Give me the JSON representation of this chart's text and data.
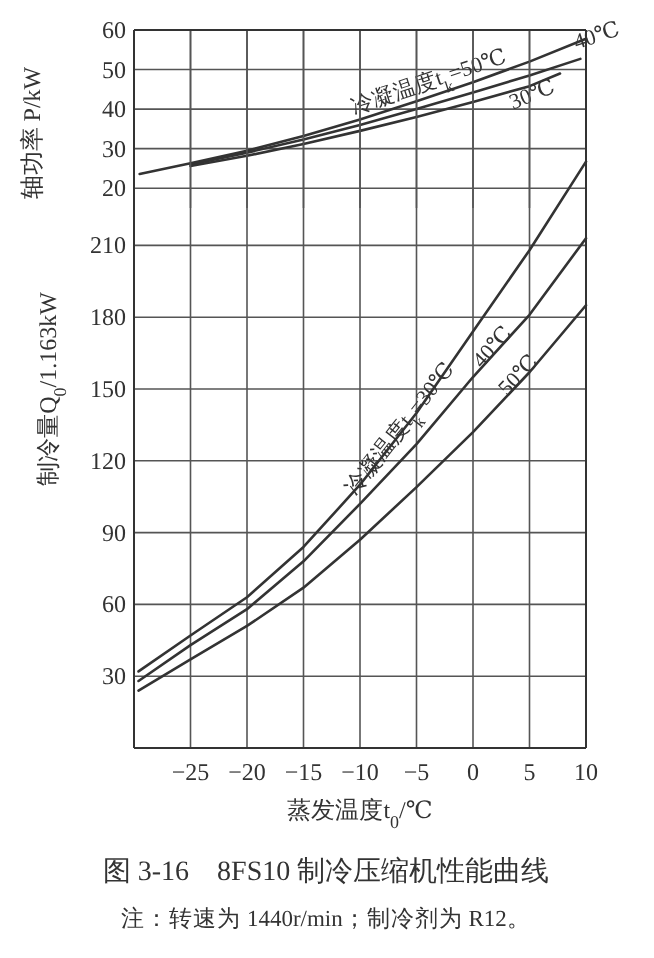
{
  "chart_data": [
    {
      "type": "line",
      "ylabel": "轴功率 P/kW",
      "xlim": [
        -30,
        10
      ],
      "xticks": [
        {
          "value": -25,
          "label": null
        },
        {
          "value": -20,
          "label": null
        },
        {
          "value": -15,
          "label": null
        },
        {
          "value": -10,
          "label": null
        },
        {
          "value": -5,
          "label": null
        },
        {
          "value": 0,
          "label": null
        },
        {
          "value": 5,
          "label": null
        },
        {
          "value": 10,
          "label": null
        }
      ],
      "ylim": [
        15,
        60
      ],
      "yticks": [
        20,
        30,
        40,
        50,
        60
      ],
      "grid": true,
      "tick_labels": "y",
      "series": [
        {
          "name": "冷凝温度t$_{k}$=50℃",
          "color": "#333333",
          "x": [
            -29.5,
            -25,
            -20,
            -15,
            -10,
            -5,
            0,
            5,
            10
          ],
          "values": [
            23.6,
            26.3,
            29.5,
            33.2,
            37.4,
            42,
            46.8,
            52,
            57.8
          ]
        },
        {
          "name": "40℃",
          "color": "#333333",
          "x": [
            -25,
            -20,
            -15,
            -10,
            -5,
            0,
            5,
            9.5
          ],
          "values": [
            26,
            29,
            32.3,
            36,
            40,
            44.2,
            48.5,
            52.7
          ]
        },
        {
          "name": "30℃",
          "color": "#333333",
          "x": [
            -25,
            -20,
            -15,
            -10,
            -5,
            0,
            5,
            7.7
          ],
          "values": [
            25.6,
            28.2,
            31.2,
            34.5,
            38,
            41.8,
            45.8,
            49
          ]
        }
      ]
    },
    {
      "type": "line",
      "title": "图 3-16　8FS10 制冷压缩机性能曲线",
      "annotations": [
        "注：转速为 1440r/min；制冷剂为 R12。"
      ],
      "xlabel": "蒸发温度t$_{0}$/℃",
      "ylabel": "制冷量Q$_{0}$/1.163kW",
      "xlim": [
        -30,
        10
      ],
      "xticks": [
        -25,
        -20,
        -15,
        -10,
        -5,
        0,
        5,
        10
      ],
      "ylim": [
        0,
        300
      ],
      "yticks": [
        30,
        60,
        90,
        120,
        150,
        180,
        210
      ],
      "grid": true,
      "series": [
        {
          "name": "冷凝温度t$_{k}$=30℃",
          "color": "#333333",
          "x": [
            -29.6,
            -25,
            -20,
            -15,
            -10,
            -5,
            0,
            5,
            10
          ],
          "values": [
            32,
            47,
            63,
            84,
            110,
            140,
            174,
            208,
            245
          ]
        },
        {
          "name": "40℃",
          "color": "#333333",
          "x": [
            -29.6,
            -25,
            -20,
            -15,
            -10,
            -5,
            0,
            5,
            10
          ],
          "values": [
            28,
            43,
            58,
            78,
            102,
            127,
            155,
            181,
            213
          ]
        },
        {
          "name": "50℃",
          "color": "#333333",
          "x": [
            -29.6,
            -25,
            -20,
            -15,
            -10,
            -5,
            0,
            5,
            10
          ],
          "values": [
            24,
            37,
            51,
            67,
            87,
            109,
            132,
            157,
            185
          ]
        }
      ]
    }
  ]
}
